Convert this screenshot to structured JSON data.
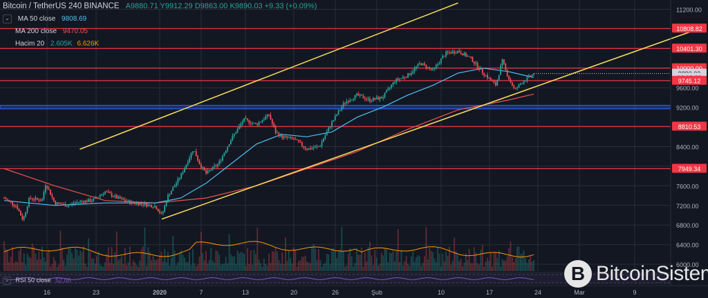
{
  "header": {
    "symbol": "Bitcoin / TetherUS  240  BINANCE",
    "ohlc": "A9880.71  Y9912.29  D9863.00  K9890.03  +9.33 (+0.09%)"
  },
  "indicators": [
    {
      "name": "MA 50 close",
      "value": "9808.69",
      "value2": "",
      "color": "#4fc3f7",
      "color2": ""
    },
    {
      "name": "MA 200 close",
      "value": "9470.05",
      "value2": "",
      "color": "#ef5350",
      "color2": ""
    },
    {
      "name": "Hacim 20",
      "value": "2.605K",
      "value2": "6.626K",
      "color": "#26a69a",
      "color2": "#ff9800"
    }
  ],
  "rsi": {
    "name": "RSI 50 close",
    "value": "52.00"
  },
  "brand": {
    "coin_glyph": "B",
    "name": "BitcoinSistemi"
  },
  "chart_data": {
    "type": "candlestick",
    "yaxis": {
      "ticks": [
        11200,
        10800,
        10400,
        10000,
        9600,
        9200,
        8800,
        8400,
        8000,
        7600,
        7200,
        6800,
        6400,
        6000
      ],
      "ylim": [
        5860,
        11390
      ]
    },
    "xaxis": {
      "labels": [
        "16",
        "23",
        "2020",
        "7",
        "13",
        "20",
        "26",
        "Şub",
        "10",
        "17",
        "24",
        "Mar",
        "9"
      ]
    },
    "price_tags": [
      {
        "label": "10808.82",
        "value": 10808.82,
        "bg": "#f23645",
        "fg": "#ffffff"
      },
      {
        "label": "10401.30",
        "value": 10401.3,
        "bg": "#f23645",
        "fg": "#ffffff"
      },
      {
        "label": "10000.00",
        "value": 10000.0,
        "bg": "#f23645",
        "fg": "#ffffff"
      },
      {
        "label": "9890.03",
        "value": 9890.03,
        "bg": "#d1d4dc",
        "fg": "#131722"
      },
      {
        "label": "02:08:29",
        "value": 9805,
        "bg": "#d1d4dc",
        "fg": "#131722"
      },
      {
        "label": "9745.12",
        "value": 9745.12,
        "bg": "#f23645",
        "fg": "#ffffff"
      },
      {
        "label": "8810.53",
        "value": 8810.53,
        "bg": "#f23645",
        "fg": "#ffffff"
      },
      {
        "label": "7949.34",
        "value": 7949.34,
        "bg": "#f23645",
        "fg": "#ffffff"
      }
    ],
    "horizontal_levels": [
      10808.82,
      10401.3,
      10000.0,
      9745.12,
      8810.53,
      7949.34
    ],
    "support_band": [
      9170,
      9240
    ],
    "trendlines": [
      {
        "from": [
          6,
          8345
        ],
        "to": [
          36,
          11330
        ]
      },
      {
        "from": [
          12.5,
          6920
        ],
        "to": [
          55.5,
          10840
        ]
      }
    ],
    "ohlc_points": [
      {
        "t": 0,
        "p": 7350
      },
      {
        "t": 1,
        "p": 7180
      },
      {
        "t": 1.5,
        "p": 6900
      },
      {
        "t": 2,
        "p": 7350
      },
      {
        "t": 3,
        "p": 7300
      },
      {
        "t": 3.3,
        "p": 7650
      },
      {
        "t": 4,
        "p": 7250
      },
      {
        "t": 5,
        "p": 7200
      },
      {
        "t": 6,
        "p": 7280
      },
      {
        "t": 7,
        "p": 7300
      },
      {
        "t": 8,
        "p": 7480
      },
      {
        "t": 9,
        "p": 7350
      },
      {
        "t": 10,
        "p": 7260
      },
      {
        "t": 11,
        "p": 7230
      },
      {
        "t": 12,
        "p": 7180
      },
      {
        "t": 12.5,
        "p": 7000
      },
      {
        "t": 13,
        "p": 7400
      },
      {
        "t": 14,
        "p": 7800
      },
      {
        "t": 15,
        "p": 8350
      },
      {
        "t": 15.5,
        "p": 8050
      },
      {
        "t": 16,
        "p": 7850
      },
      {
        "t": 17,
        "p": 8050
      },
      {
        "t": 18,
        "p": 8550
      },
      {
        "t": 19,
        "p": 8950
      },
      {
        "t": 20,
        "p": 8850
      },
      {
        "t": 21,
        "p": 9050
      },
      {
        "t": 21.5,
        "p": 8700
      },
      {
        "t": 22,
        "p": 8600
      },
      {
        "t": 23,
        "p": 8550
      },
      {
        "t": 24,
        "p": 8350
      },
      {
        "t": 25,
        "p": 8400
      },
      {
        "t": 26,
        "p": 8900
      },
      {
        "t": 27,
        "p": 9300
      },
      {
        "t": 28,
        "p": 9450
      },
      {
        "t": 29,
        "p": 9350
      },
      {
        "t": 30,
        "p": 9400
      },
      {
        "t": 31,
        "p": 9750
      },
      {
        "t": 32,
        "p": 9850
      },
      {
        "t": 33,
        "p": 10100
      },
      {
        "t": 34,
        "p": 9950
      },
      {
        "t": 35,
        "p": 10300
      },
      {
        "t": 36,
        "p": 10350
      },
      {
        "t": 37,
        "p": 10200
      },
      {
        "t": 38,
        "p": 9900
      },
      {
        "t": 39,
        "p": 9650
      },
      {
        "t": 39.5,
        "p": 10150
      },
      {
        "t": 40,
        "p": 9800
      },
      {
        "t": 40.5,
        "p": 9550
      },
      {
        "t": 41,
        "p": 9700
      },
      {
        "t": 42,
        "p": 9890
      }
    ],
    "ma50": [
      {
        "t": 0,
        "p": 7300
      },
      {
        "t": 4,
        "p": 7200
      },
      {
        "t": 8,
        "p": 7250
      },
      {
        "t": 12,
        "p": 7250
      },
      {
        "t": 14,
        "p": 7350
      },
      {
        "t": 16,
        "p": 7650
      },
      {
        "t": 18,
        "p": 8050
      },
      {
        "t": 20,
        "p": 8450
      },
      {
        "t": 22,
        "p": 8650
      },
      {
        "t": 24,
        "p": 8600
      },
      {
        "t": 26,
        "p": 8700
      },
      {
        "t": 28,
        "p": 9000
      },
      {
        "t": 30,
        "p": 9200
      },
      {
        "t": 32,
        "p": 9450
      },
      {
        "t": 34,
        "p": 9650
      },
      {
        "t": 36,
        "p": 9900
      },
      {
        "t": 38,
        "p": 10000
      },
      {
        "t": 40,
        "p": 9930
      },
      {
        "t": 42,
        "p": 9810
      }
    ],
    "ma200": [
      {
        "t": 0,
        "p": 7950
      },
      {
        "t": 4,
        "p": 7600
      },
      {
        "t": 8,
        "p": 7300
      },
      {
        "t": 12,
        "p": 7250
      },
      {
        "t": 16,
        "p": 7350
      },
      {
        "t": 20,
        "p": 7600
      },
      {
        "t": 24,
        "p": 7950
      },
      {
        "t": 28,
        "p": 8300
      },
      {
        "t": 32,
        "p": 8750
      },
      {
        "t": 36,
        "p": 9150
      },
      {
        "t": 40,
        "p": 9350
      },
      {
        "t": 42,
        "p": 9470
      }
    ],
    "volume_ma_level": 0.55
  },
  "colors": {
    "bg": "#131722",
    "up": "#26a69a",
    "down": "#ef5350",
    "level": "#f23645",
    "trend": "#f5d75b",
    "band": "#2962ff",
    "ma50": "#4fc3f7",
    "ma200": "#ef5350",
    "vol_ma": "#ff9800",
    "grid": "#2a2e39",
    "axis_text": "#b2b5be",
    "rsi": "#7e57c2"
  }
}
